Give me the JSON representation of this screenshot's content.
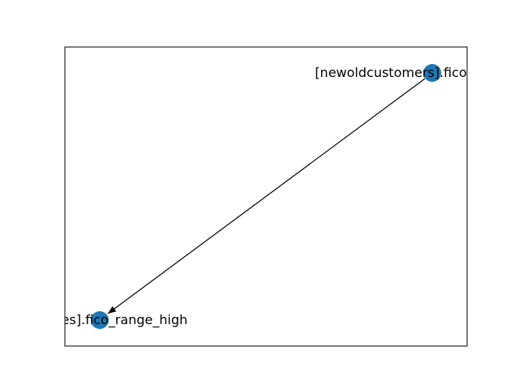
{
  "graph": {
    "nodes": [
      {
        "id": "source",
        "label": "[newoldcustomers].fico"
      },
      {
        "id": "target",
        "label": "[variables].fico_range_high"
      }
    ],
    "edges": [
      {
        "from": "source",
        "to": "target",
        "directed": true
      }
    ],
    "colors": {
      "node_fill": "#1f77b4",
      "edge": "#000000",
      "frame": "#000000",
      "background": "#ffffff"
    }
  }
}
